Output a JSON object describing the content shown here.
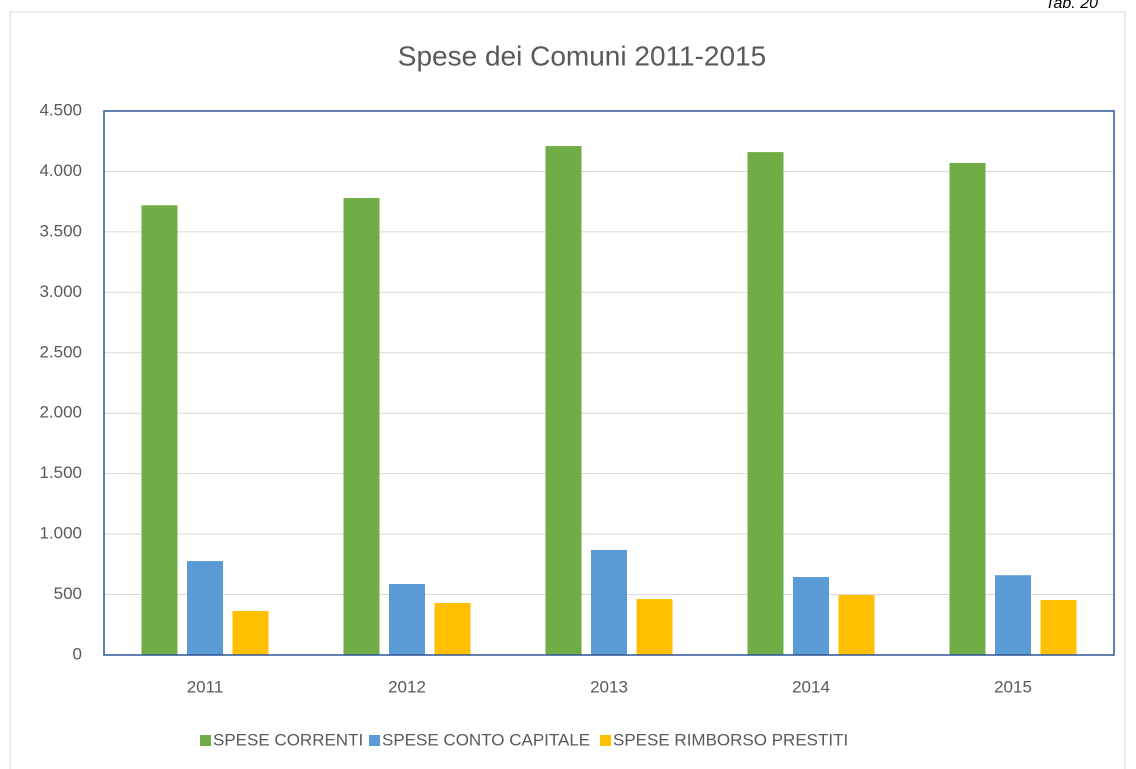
{
  "caption": "Tab. 20",
  "chart_data": {
    "type": "bar",
    "title": "Spese dei Comuni 2011-2015",
    "categories": [
      "2011",
      "2012",
      "2013",
      "2014",
      "2015"
    ],
    "series": [
      {
        "name": "SPESE CORRENTI",
        "color": "#70ad47",
        "values": [
          3720,
          3780,
          4210,
          4160,
          4070
        ]
      },
      {
        "name": "SPESE CONTO CAPITALE",
        "color": "#5b9bd5",
        "values": [
          777,
          587,
          869,
          645,
          660
        ]
      },
      {
        "name": "SPESE RIMBORSO PRESTITI",
        "color": "#ffc000",
        "values": [
          364,
          430,
          463,
          496,
          455
        ]
      }
    ],
    "ylim": [
      0,
      4500
    ],
    "yticks": [
      0,
      500,
      {
        "value": 1000,
        "label": "1.000"
      },
      {
        "value": 1500,
        "label": "1.500"
      },
      {
        "value": 2000,
        "label": "2.000"
      },
      {
        "value": 2500,
        "label": "2.500"
      },
      {
        "value": 3000,
        "label": "3.000"
      },
      {
        "value": 3500,
        "label": "3.500"
      },
      {
        "value": 4000,
        "label": "4.000"
      },
      {
        "value": 4500,
        "label": "4.500"
      }
    ],
    "grid": true,
    "legend": "bottom"
  }
}
